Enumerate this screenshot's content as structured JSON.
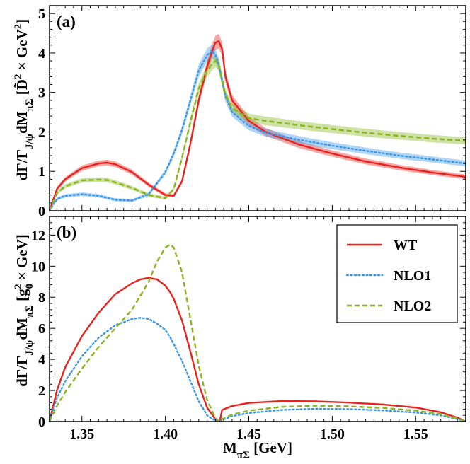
{
  "chart_data": [
    {
      "type": "line",
      "panel_tag": "(a)",
      "ylabel": "dΓ/Γ_{J/ψ}dM_{πΣ} [D̃² × GeV²]",
      "xlim": [
        1.3306,
        1.58
      ],
      "ylim": [
        0,
        5.2
      ],
      "xticks": [
        1.35,
        1.4,
        1.45,
        1.5,
        1.55
      ],
      "xtick_labels": [],
      "yticks": [
        0,
        1,
        2,
        3,
        4,
        5
      ],
      "ytick_labels": [
        "0",
        "1",
        "2",
        "3",
        "4",
        "5"
      ],
      "x": [
        1.3306,
        1.335,
        1.34,
        1.35,
        1.36,
        1.365,
        1.37,
        1.38,
        1.39,
        1.4,
        1.405,
        1.41,
        1.415,
        1.42,
        1.425,
        1.428,
        1.43,
        1.432,
        1.434,
        1.436,
        1.44,
        1.45,
        1.46,
        1.48,
        1.5,
        1.52,
        1.54,
        1.56,
        1.58
      ],
      "series": [
        {
          "name": "WT",
          "color": "#e8231f",
          "style": "solid",
          "band": true,
          "values": [
            0.0,
            0.55,
            0.8,
            1.08,
            1.2,
            1.22,
            1.18,
            0.98,
            0.66,
            0.4,
            0.38,
            0.75,
            1.7,
            2.8,
            3.65,
            4.05,
            4.26,
            4.3,
            4.1,
            3.4,
            2.8,
            2.28,
            2.0,
            1.68,
            1.45,
            1.25,
            1.1,
            0.97,
            0.86
          ]
        },
        {
          "name": "NLO1",
          "color": "#3a96e6",
          "style": "dotted",
          "band": true,
          "values": [
            0.0,
            0.3,
            0.38,
            0.42,
            0.38,
            0.33,
            0.28,
            0.26,
            0.42,
            0.98,
            1.45,
            2.05,
            2.8,
            3.55,
            3.95,
            4.05,
            3.95,
            3.7,
            3.3,
            2.9,
            2.5,
            2.15,
            1.98,
            1.8,
            1.65,
            1.52,
            1.4,
            1.3,
            1.2
          ]
        },
        {
          "name": "NLO2",
          "color": "#88b41e",
          "style": "dashed",
          "band": true,
          "values": [
            0.0,
            0.45,
            0.62,
            0.77,
            0.79,
            0.78,
            0.72,
            0.58,
            0.4,
            0.32,
            0.55,
            1.35,
            2.25,
            3.1,
            3.55,
            3.72,
            3.8,
            3.7,
            3.3,
            2.95,
            2.6,
            2.35,
            2.28,
            2.17,
            2.07,
            1.98,
            1.9,
            1.83,
            1.77
          ]
        }
      ]
    },
    {
      "type": "line",
      "panel_tag": "(b)",
      "xlabel": "M_{πΣ} [GeV]",
      "ylabel": "dΓ/Γ_{J/ψ}dM_{πΣ} [g₀² × GeV]",
      "xlim": [
        1.3306,
        1.58
      ],
      "ylim": [
        0,
        13.2
      ],
      "xticks": [
        1.35,
        1.4,
        1.45,
        1.5,
        1.55
      ],
      "xtick_labels": [
        "1.35",
        "1.40",
        "1.45",
        "1.50",
        "1.55"
      ],
      "yticks": [
        0,
        2,
        4,
        6,
        8,
        10,
        12
      ],
      "ytick_labels": [
        "0",
        "2",
        "4",
        "6",
        "8",
        "10",
        "12"
      ],
      "legend": {
        "position": "top-right",
        "entries": [
          "WT",
          "NLO1",
          "NLO2"
        ]
      },
      "x": [
        1.3306,
        1.335,
        1.34,
        1.35,
        1.36,
        1.37,
        1.38,
        1.385,
        1.39,
        1.395,
        1.4,
        1.403,
        1.405,
        1.41,
        1.415,
        1.42,
        1.425,
        1.43,
        1.4326,
        1.434,
        1.44,
        1.45,
        1.47,
        1.49,
        1.51,
        1.53,
        1.55,
        1.565,
        1.575,
        1.58
      ],
      "series": [
        {
          "name": "WT",
          "color": "#e8231f",
          "style": "solid",
          "values": [
            0.0,
            2.0,
            3.5,
            5.5,
            7.0,
            8.2,
            8.9,
            9.15,
            9.25,
            9.15,
            8.75,
            8.3,
            7.9,
            6.5,
            4.5,
            2.4,
            0.9,
            0.15,
            0.0,
            0.75,
            1.0,
            1.2,
            1.32,
            1.3,
            1.22,
            1.1,
            0.9,
            0.6,
            0.25,
            0.0
          ]
        },
        {
          "name": "NLO1",
          "color": "#3a96e6",
          "style": "dotted",
          "values": [
            0.0,
            1.5,
            2.6,
            4.2,
            5.4,
            6.2,
            6.6,
            6.68,
            6.6,
            6.3,
            5.9,
            5.4,
            5.0,
            3.9,
            2.6,
            1.3,
            0.4,
            0.05,
            0.0,
            0.1,
            0.35,
            0.55,
            0.75,
            0.82,
            0.8,
            0.72,
            0.58,
            0.4,
            0.16,
            0.0
          ]
        },
        {
          "name": "NLO2",
          "color": "#88b41e",
          "style": "dashed",
          "values": [
            0.0,
            1.0,
            1.9,
            3.4,
            4.8,
            6.0,
            7.2,
            8.1,
            9.0,
            10.3,
            11.2,
            11.4,
            11.2,
            9.6,
            6.6,
            3.6,
            1.4,
            0.2,
            0.0,
            0.15,
            0.45,
            0.7,
            0.95,
            1.02,
            0.98,
            0.88,
            0.7,
            0.48,
            0.2,
            0.0
          ]
        }
      ]
    }
  ]
}
